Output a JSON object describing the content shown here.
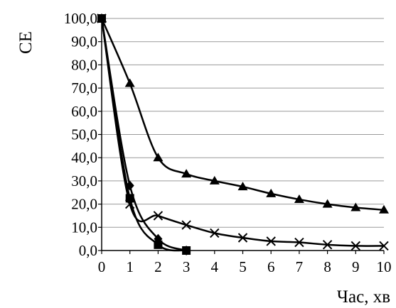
{
  "chart_data": {
    "type": "line",
    "title": "",
    "xlabel": "Час, хв",
    "ylabel": "СЕ",
    "xlim": [
      0,
      10
    ],
    "ylim": [
      0,
      100
    ],
    "grid": "horizontal",
    "x_ticks": [
      0,
      1,
      2,
      3,
      4,
      5,
      6,
      7,
      8,
      9,
      10
    ],
    "x_tick_labels": [
      "0",
      "1",
      "2",
      "3",
      "4",
      "5",
      "6",
      "7",
      "8",
      "9",
      "10"
    ],
    "y_ticks": [
      0,
      10,
      20,
      30,
      40,
      50,
      60,
      70,
      80,
      90,
      100
    ],
    "y_tick_labels": [
      "0,0",
      "10,0",
      "20,0",
      "30,0",
      "40,0",
      "50,0",
      "60,0",
      "70,0",
      "80,0",
      "90,0",
      "100,0"
    ],
    "series": [
      {
        "marker": "triangle",
        "color": "#000000",
        "x": [
          0,
          1,
          2,
          3,
          4,
          5,
          6,
          7,
          8,
          9,
          10
        ],
        "values": [
          100,
          72,
          40,
          33,
          30,
          27.5,
          24.5,
          22,
          20,
          18.5,
          17.5
        ]
      },
      {
        "marker": "cross",
        "color": "#000000",
        "x": [
          0,
          1,
          2,
          3,
          4,
          5,
          6,
          7,
          8,
          9,
          10
        ],
        "values": [
          100,
          20,
          15,
          11,
          7.5,
          5.5,
          4,
          3.5,
          2.5,
          2,
          2
        ]
      },
      {
        "marker": "diamond",
        "color": "#000000",
        "x": [
          0,
          1,
          2,
          3
        ],
        "values": [
          100,
          28,
          5,
          0
        ]
      },
      {
        "marker": "square",
        "color": "#000000",
        "x": [
          0,
          1,
          2,
          3
        ],
        "values": [
          100,
          22.5,
          2.5,
          0
        ]
      }
    ]
  }
}
